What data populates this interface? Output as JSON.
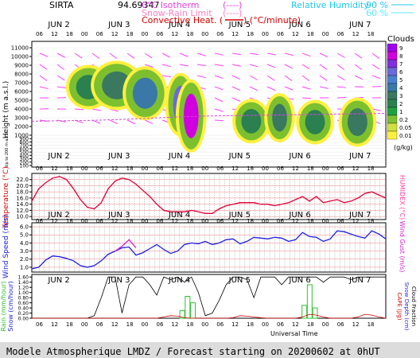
{
  "header": {
    "station": "SIRTA",
    "station_value": "94.69347",
    "legend_isotherm": "0°C Isotherm",
    "legend_isotherm_sym": "(----)",
    "legend_snowrain": "Snow-Rain Limit",
    "legend_snowrain_sym": "(----)",
    "legend_convective": "Convective Heat. (",
    "legend_convective_unit": ") (°C/minute)",
    "legend_rh": "Relative Humidity",
    "legend_rh_90": "90 %",
    "legend_rh_60": "60 %"
  },
  "colors": {
    "isotherm": "#e040e0",
    "convective": "#d00000",
    "rh90": "#22c8f0",
    "rh60": "#60e8f8",
    "temperature": "#e0003a",
    "humidex": "#ff40a0",
    "wind": "#2020e0",
    "gust": "#d020d0",
    "rain": "#30c030",
    "snow": "#2020e0",
    "cape": "#d00000",
    "cloud_fraction": "#000000",
    "footer_bg": "#dcdcdc"
  },
  "time_axis": {
    "days": [
      "JUN 2",
      "JUN 3",
      "JUN 4",
      "JUN 5",
      "JUN 6",
      "JUN 7"
    ],
    "hour_ticks": [
      "06",
      "12",
      "18",
      "00",
      "06",
      "12",
      "18",
      "00",
      "06",
      "12",
      "18",
      "00",
      "06",
      "12",
      "18",
      "00",
      "06",
      "12",
      "18",
      "00",
      "06",
      "12",
      "18"
    ],
    "xlabel": "Universal Time"
  },
  "footer": {
    "text": "Modele Atmospherique LMDZ / Forecast starting on 20200602 at 0hUT"
  },
  "chart_data": [
    {
      "type": "heatmap",
      "id": "clouds",
      "title": "Clouds",
      "unit": "(g/kg)",
      "ylabel": "Height (m a.s.l.)",
      "ylabel_low": "Up to 200 m a.s.l.",
      "yticks": [
        "11000",
        "10000",
        "9000",
        "8000",
        "7000",
        "6000",
        "5000",
        "4000",
        "3000",
        "2000",
        "1000",
        "900",
        "800",
        "700",
        "600",
        "500",
        "400",
        "300",
        "200",
        "100"
      ],
      "colorbar_labels": [
        "9",
        "8",
        "7",
        "6",
        "5",
        "4",
        "3",
        "2",
        "1",
        "0.2",
        "0.05",
        "0.01"
      ],
      "colorbar_colors": [
        "#a000f0",
        "#d000e0",
        "#8030e0",
        "#6a6ad8",
        "#4a80d0",
        "#3a78a8",
        "#3a7860",
        "#2a8050",
        "#20a040",
        "#7cc030",
        "#d0e040",
        "#fff040"
      ],
      "cloud_masses": [
        {
          "t": 0.16,
          "h": 6500,
          "w": 0.05,
          "v": 2
        },
        {
          "t": 0.24,
          "h": 6700,
          "w": 0.06,
          "v": 3
        },
        {
          "t": 0.32,
          "h": 5800,
          "w": 0.05,
          "v": 4
        },
        {
          "t": 0.42,
          "h": 4500,
          "w": 0.03,
          "v": 6
        },
        {
          "t": 0.45,
          "h": 3200,
          "w": 0.03,
          "v": 8
        },
        {
          "t": 0.62,
          "h": 2600,
          "w": 0.04,
          "v": 2
        },
        {
          "t": 0.7,
          "h": 3000,
          "w": 0.03,
          "v": 3
        },
        {
          "t": 0.8,
          "h": 2500,
          "w": 0.04,
          "v": 2
        },
        {
          "t": 0.92,
          "h": 2500,
          "w": 0.04,
          "v": 3
        }
      ],
      "isotherm_height": [
        2600,
        2650,
        2700,
        2800,
        2950,
        3100,
        3200,
        3250,
        3300,
        3350,
        3400,
        3450,
        3500
      ]
    },
    {
      "type": "line",
      "id": "temperature",
      "ylabel": "Temperature (°C)",
      "ylabel_right": "HUMIDEX (°C)",
      "yticks": [
        "22.0",
        "20.0",
        "18.0",
        "16.0",
        "14.0",
        "12.0",
        "10.0"
      ],
      "ylim": [
        9,
        24
      ],
      "series": [
        {
          "values": [
            15,
            19,
            21,
            22.5,
            23,
            22,
            19,
            15.5,
            13,
            12.5,
            14.5,
            19,
            21.5,
            22.5,
            22,
            20.5,
            18.5,
            16.5,
            14,
            12,
            11.5,
            11.5,
            11.5,
            12,
            11.5,
            11,
            11,
            12.5,
            13.5,
            14,
            14.5,
            14.5,
            14.5,
            14,
            14,
            13.5,
            14,
            14.5,
            15.5,
            16.5,
            15,
            16.5,
            14.5,
            15,
            15.5,
            14.5,
            15,
            16,
            17.5,
            18,
            17,
            16
          ]
        }
      ]
    },
    {
      "type": "line",
      "id": "wind",
      "ylabel": "Wind Speed (m/s)",
      "ylabel_right": "Wind Gust (m/s)",
      "yticks": [
        "6.0",
        "5.0",
        "4.0",
        "3.0",
        "2.0",
        "1.0"
      ],
      "ylim": [
        0.4,
        6.5
      ],
      "series": [
        {
          "values": [
            0.8,
            1.0,
            1.9,
            2.4,
            2.3,
            2.1,
            1.8,
            1.2,
            1.0,
            1.2,
            1.8,
            2.6,
            3.0,
            3.4,
            3.5,
            2.5,
            2.8,
            3.3,
            3.8,
            3.2,
            2.7,
            3.0,
            3.8,
            4.0,
            3.9,
            4.2,
            3.8,
            4.0,
            4.4,
            4.5,
            3.9,
            4.2,
            4.7,
            4.6,
            4.5,
            4.7,
            4.6,
            4.2,
            4.4,
            5.3,
            4.8,
            4.7,
            4.2,
            4.5,
            5.5,
            5.4,
            5.1,
            4.8,
            4.6,
            5.5,
            5.1,
            4.5
          ]
        },
        {
          "values": [
            null,
            null,
            null,
            null,
            null,
            null,
            null,
            null,
            null,
            null,
            null,
            null,
            3.0,
            3.6,
            4.4,
            3.4,
            null,
            null,
            null,
            null,
            null,
            null,
            null,
            null,
            null,
            null,
            null,
            null,
            null,
            null,
            null,
            null,
            null,
            null,
            null,
            null,
            null,
            null,
            null,
            null,
            null,
            null,
            null,
            null,
            null,
            null,
            null,
            null,
            null,
            null,
            null,
            null
          ]
        }
      ]
    },
    {
      "type": "bar",
      "id": "precip",
      "ylabel_left": "Rain (mm/hour)",
      "ylabel_left2": "Snow (cm/hour)",
      "ylabel_right": "CAPE (J/g)",
      "ylabel_right2": "Snow Depth (cm)",
      "ylabel_right3": "Cloud Fraction",
      "yticks": [
        "1.60",
        "1.40",
        "1.20",
        "1.00",
        "0.80",
        "0.60",
        "0.40",
        "0.20",
        "0.00"
      ],
      "ylim": [
        0,
        1.7
      ],
      "rain_bars": [
        {
          "t": 0.425,
          "v": 0.3
        },
        {
          "t": 0.44,
          "v": 0.85
        },
        {
          "t": 0.455,
          "v": 0.6
        },
        {
          "t": 0.77,
          "v": 0.5
        },
        {
          "t": 0.785,
          "v": 1.3
        },
        {
          "t": 0.8,
          "v": 0.4
        }
      ],
      "cloud_fraction": [
        0,
        0,
        0,
        0,
        0,
        0,
        0,
        0,
        0,
        0.1,
        0.8,
        1.6,
        1.6,
        0.2,
        1.3,
        1.6,
        1.6,
        1.3,
        0.9,
        1.6,
        1.5,
        1.6,
        1.4,
        1.6,
        1.0,
        0.1,
        0.2,
        0.7,
        1.3,
        1.6,
        1.6,
        1.5,
        0.8,
        1.6,
        1.6,
        1.6,
        1.3,
        1.6,
        1.6,
        1.6,
        1.6,
        1.6,
        1.4,
        1.6,
        1.6,
        1.6,
        1.5,
        1.6,
        1.6,
        1.6,
        1.6,
        1.6
      ],
      "cape": [
        0,
        0,
        0,
        0,
        0,
        0,
        0,
        0,
        0,
        0,
        0,
        0,
        0,
        0,
        0,
        0,
        0,
        0,
        0,
        0.05,
        0.1,
        0.08,
        0.02,
        0,
        0,
        0,
        0,
        0,
        0,
        0.02,
        0.1,
        0.08,
        0.05,
        0.02,
        0,
        0,
        0,
        0,
        0,
        0.05,
        0.15,
        0.12,
        0.05,
        0,
        0,
        0,
        0,
        0.05,
        0.15,
        0.12,
        0.05,
        0
      ]
    }
  ]
}
